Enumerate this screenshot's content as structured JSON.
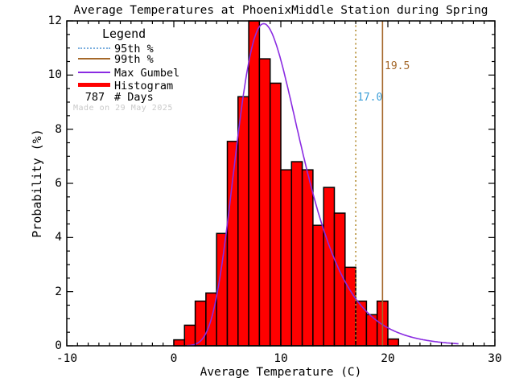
{
  "title": "Average Temperatures at PhoenixMiddle Station during Spring",
  "watermark": "Made on 29 May 2025",
  "annotations": {
    "p95_label": "17.0",
    "p99_label": "19.5"
  },
  "legend": {
    "title": "Legend",
    "entries": [
      {
        "label": "95th %",
        "swatch": "dotted-blue"
      },
      {
        "label": "99th %",
        "swatch": "solid-brown"
      },
      {
        "label": "Max Gumbel",
        "swatch": "solid-purple"
      },
      {
        "label": "Histogram",
        "swatch": "thick-red"
      },
      {
        "label": "# Days",
        "value": "787"
      }
    ]
  },
  "colors": {
    "histogram_fill": "#ff0000",
    "histogram_outline": "#000000",
    "gumbel_curve": "#8a2be2",
    "p95_line": "#b28a2e",
    "p95_text": "#3d9fd8",
    "p99_line": "#a5682a",
    "p99_text": "#a5682a",
    "axes": "#000000",
    "watermark": "#c9c9c9"
  },
  "chart_data": {
    "type": "histogram+line",
    "title": "Average Temperatures at PhoenixMiddle Station during Spring",
    "xlabel": "Average Temperature (C)",
    "ylabel": "Probability (%)",
    "xlim": [
      -10,
      30
    ],
    "ylim": [
      0,
      12
    ],
    "x_major_ticks": [
      -10,
      0,
      10,
      20,
      30
    ],
    "x_minor_step": 1,
    "y_major_ticks": [
      0,
      2,
      4,
      6,
      8,
      10,
      12
    ],
    "y_minor_step": 0.5,
    "grid": false,
    "legend_position": "upper-left",
    "n_days": 787,
    "histogram": {
      "bin_start": 0,
      "bin_width": 1,
      "values_percent": [
        0.22,
        0.76,
        1.65,
        1.95,
        4.15,
        7.55,
        9.2,
        12.0,
        10.6,
        9.7,
        6.5,
        6.8,
        6.5,
        4.45,
        5.85,
        4.9,
        2.9,
        1.65,
        1.15,
        1.65,
        0.25
      ]
    },
    "gumbel_fit": {
      "mu": 8.4,
      "beta": 3.0,
      "peak_percent": 11.9,
      "x_start": 1.2,
      "x_end": 26.6
    },
    "percentile_95_value": 17.0,
    "percentile_99_value": 19.5
  }
}
